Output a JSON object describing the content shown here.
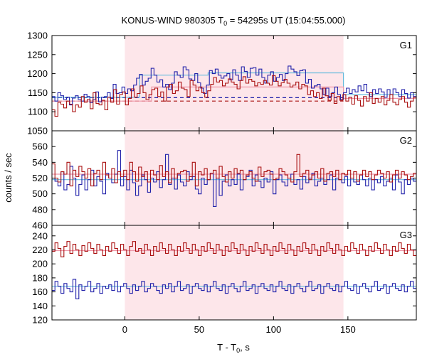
{
  "title": {
    "main": "KONUS-WIND 980305 T",
    "sub": "0",
    "rest": " = 54295s UT (15:04:55.000)"
  },
  "xlabel": {
    "main": "T - T",
    "sub": "0",
    "rest": ", s"
  },
  "ylabel": "counts / sec",
  "chart_data": {
    "type": "line",
    "x_range": [
      -49,
      196
    ],
    "x_ticks": [
      0,
      50,
      100,
      150
    ],
    "shaded_interval": [
      0,
      147
    ],
    "panels": [
      {
        "label": "G1",
        "ylim": [
          1050,
          1300
        ],
        "y_ticks": [
          1050,
          1100,
          1150,
          1200,
          1250,
          1300
        ],
        "series": [
          {
            "color": "#2222aa",
            "values": [
              1140,
              1128,
              1150,
              1142,
              1132,
              1138,
              1118,
              1136,
              1142,
              1132,
              1128,
              1146,
              1140,
              1124,
              1132,
              1152,
              1126,
              1138,
              1140,
              1150,
              1135,
              1172,
              1148,
              1150,
              1165,
              1148,
              1160,
              1155,
              1170,
              1188,
              1198,
              1170,
              1180,
              1188,
              1214,
              1196,
              1178,
              1184,
              1165,
              1172,
              1158,
              1175,
              1205,
              1196,
              1190,
              1218,
              1210,
              1186,
              1182,
              1200,
              1176,
              1162,
              1148,
              1170,
              1208,
              1200,
              1212,
              1196,
              1188,
              1194,
              1200,
              1184,
              1210,
              1196,
              1182,
              1218,
              1206,
              1190,
              1214,
              1216,
              1196,
              1212,
              1190,
              1175,
              1196,
              1205,
              1180,
              1190,
              1198,
              1182,
              1200,
              1220,
              1212,
              1205,
              1195,
              1208,
              1210,
              1175,
              1185,
              1162,
              1168,
              1172,
              1160,
              1145,
              1162,
              1140,
              1150,
              1165,
              1145,
              1132,
              1150,
              1162,
              1148,
              1158,
              1152,
              1168,
              1155,
              1172,
              1150,
              1140,
              1158,
              1148,
              1160,
              1152,
              1138,
              1158,
              1145,
              1160,
              1150,
              1140,
              1158,
              1148,
              1136,
              1150,
              1140
            ]
          },
          {
            "color": "#aa1111",
            "values": [
              1105,
              1088,
              1125,
              1120,
              1110,
              1128,
              1120,
              1100,
              1118,
              1112,
              1140,
              1125,
              1132,
              1108,
              1150,
              1122,
              1118,
              1130,
              1105,
              1138,
              1125,
              1158,
              1120,
              1145,
              1152,
              1118,
              1135,
              1160,
              1138,
              1148,
              1168,
              1150,
              1132,
              1145,
              1158,
              1162,
              1140,
              1152,
              1128,
              1165,
              1172,
              1148,
              1155,
              1178,
              1162,
              1158,
              1140,
              1182,
              1170,
              1155,
              1165,
              1150,
              1138,
              1155,
              1172,
              1190,
              1178,
              1182,
              1168,
              1175,
              1186,
              1178,
              1172,
              1160,
              1182,
              1192,
              1175,
              1185,
              1180,
              1168,
              1176,
              1172,
              1182,
              1175,
              1170,
              1195,
              1180,
              1168,
              1176,
              1185,
              1175,
              1165,
              1170,
              1178,
              1160,
              1172,
              1168,
              1145,
              1155,
              1140,
              1150,
              1135,
              1162,
              1142,
              1130,
              1148,
              1122,
              1140,
              1130,
              1145,
              1128,
              1138,
              1120,
              1142,
              1130,
              1115,
              1140,
              1128,
              1150,
              1122,
              1135,
              1125,
              1140,
              1118,
              1130,
              1145,
              1125,
              1118,
              1132,
              1140,
              1125,
              1112,
              1128,
              1138
            ]
          }
        ],
        "fit_lines": [
          {
            "color": "#2222aa",
            "style": "dashed",
            "x": [
              -49,
              147
            ],
            "values": [
              1137,
              1137
            ]
          },
          {
            "color": "#aa1111",
            "style": "dashed",
            "x": [
              -49,
              147
            ],
            "values": [
              1128,
              1128
            ]
          },
          {
            "color": "#66bbdd",
            "style": "solid",
            "x": [
              -49,
              10,
              10,
              56,
              56,
              147,
              147,
              196
            ],
            "values": [
              1138,
              1138,
              1196,
              1196,
              1202,
              1202,
              1145,
              1145
            ]
          },
          {
            "color": "#ee99aa",
            "style": "solid",
            "x": [
              -49,
              18,
              18,
              147,
              147,
              196
            ],
            "values": [
              1128,
              1128,
              1165,
              1165,
              1135,
              1135
            ]
          }
        ]
      },
      {
        "label": "G2",
        "ylim": [
          460,
          580
        ],
        "y_ticks": [
          460,
          480,
          500,
          520,
          540,
          560
        ],
        "series": [
          {
            "color": "#2222aa",
            "values": [
              520,
              516,
              510,
              528,
              505,
              512,
              535,
              520,
              498,
              512,
              524,
              505,
              518,
              530,
              510,
              522,
              516,
              500,
              526,
              520,
              514,
              525,
              555,
              510,
              522,
              505,
              530,
              514,
              498,
              510,
              524,
              518,
              502,
              520,
              515,
              528,
              508,
              518,
              550,
              512,
              520,
              506,
              524,
              515,
              510,
              528,
              518,
              522,
              506,
              500,
              520,
              512,
              518,
              526,
              484,
              520,
              498,
              516,
              524,
              510,
              518,
              512,
              525,
              505,
              518,
              522,
              530,
              510,
              524,
              516,
              508,
              520,
              515,
              528,
              500,
              518,
              524,
              515,
              510,
              520,
              525,
              512,
              518,
              506,
              522,
              514,
              520,
              526,
              510,
              516,
              520,
              512,
              518,
              524,
              505,
              520,
              518,
              514,
              522,
              510,
              520,
              515,
              512,
              524,
              518,
              510,
              520,
              505,
              518,
              514,
              522,
              510,
              516,
              520,
              505,
              524,
              515,
              500,
              518,
              512,
              520,
              516
            ]
          },
          {
            "color": "#aa1111",
            "values": [
              538,
              520,
              515,
              528,
              525,
              540,
              510,
              530,
              522,
              535,
              528,
              520,
              532,
              510,
              526,
              530,
              518,
              540,
              524,
              520,
              532,
              514,
              528,
              522,
              530,
              518,
              540,
              528,
              516,
              534,
              522,
              528,
              515,
              530,
              524,
              518,
              536,
              522,
              528,
              514,
              532,
              520,
              526,
              528,
              530,
              516,
              522,
              540,
              510,
              528,
              524,
              532,
              518,
              526,
              530,
              520,
              535,
              522,
              515,
              528,
              520,
              532,
              526,
              530,
              518,
              524,
              528,
              520,
              516,
              534,
              522,
              528,
              530,
              525,
              518,
              520,
              532,
              528,
              524,
              520,
              515,
              528,
              550,
              522,
              526,
              530,
              518,
              524,
              528,
              520,
              532,
              516,
              526,
              528,
              522,
              530,
              518,
              526,
              524,
              530,
              520,
              528,
              516,
              524,
              530,
              522,
              528,
              518,
              524,
              530,
              526,
              520,
              528,
              515,
              524,
              530,
              520,
              528,
              524,
              518,
              522,
              526
            ]
          }
        ],
        "fit_lines": [
          {
            "color": "#66bbdd",
            "style": "solid",
            "x": [
              -49,
              196
            ],
            "values": [
              518,
              518
            ]
          },
          {
            "color": "#ee99aa",
            "style": "solid",
            "x": [
              -49,
              196
            ],
            "values": [
              525,
              525
            ]
          }
        ]
      },
      {
        "label": "G3",
        "ylim": [
          120,
          255
        ],
        "y_ticks": [
          120,
          140,
          160,
          180,
          200,
          220,
          240
        ],
        "series": [
          {
            "color": "#2222aa",
            "values": [
              162,
              175,
              168,
              158,
              172,
              165,
              160,
              178,
              150,
              170,
              162,
              168,
              175,
              160,
              165,
              172,
              158,
              168,
              165,
              170,
              162,
              175,
              160,
              168,
              172,
              165,
              158,
              170,
              162,
              168,
              175,
              160,
              165,
              172,
              168,
              162,
              158,
              170,
              165,
              172,
              160,
              168,
              175,
              162,
              165,
              170,
              158,
              168,
              172,
              165,
              162,
              170,
              160,
              168,
              175,
              165,
              162,
              170,
              158,
              168,
              172,
              165,
              160,
              168,
              175,
              162,
              165,
              170,
              158,
              168,
              172,
              165,
              162,
              170,
              160,
              168,
              175,
              165,
              162,
              170,
              158,
              168,
              172,
              165,
              160,
              168,
              175,
              162,
              165,
              170,
              158,
              168,
              172,
              165,
              162,
              170,
              160,
              168,
              175,
              165,
              162,
              170,
              158,
              168,
              172,
              165,
              160,
              168,
              175,
              162,
              165,
              170,
              158,
              168,
              172,
              165,
              162,
              170,
              160,
              168,
              175,
              165
            ]
          },
          {
            "color": "#aa1111",
            "values": [
              218,
              230,
              222,
              210,
              225,
              232,
              215,
              228,
              220,
              212,
              226,
              218,
              230,
              222,
              215,
              228,
              220,
              212,
              225,
              218,
              230,
              222,
              215,
              228,
              220,
              212,
              225,
              232,
              218,
              222,
              215,
              228,
              220,
              212,
              225,
              218,
              230,
              222,
              215,
              228,
              220,
              212,
              225,
              218,
              230,
              222,
              215,
              228,
              220,
              212,
              225,
              218,
              230,
              222,
              215,
              228,
              220,
              212,
              225,
              218,
              230,
              222,
              215,
              228,
              220,
              212,
              225,
              218,
              230,
              222,
              215,
              228,
              220,
              212,
              225,
              218,
              230,
              222,
              215,
              228,
              220,
              212,
              225,
              218,
              230,
              222,
              215,
              228,
              220,
              212,
              225,
              218,
              230,
              222,
              215,
              228,
              220,
              212,
              225,
              218,
              230,
              222,
              215,
              228,
              220,
              212,
              225,
              218,
              230,
              222,
              215,
              228,
              220,
              212,
              225,
              218,
              230,
              222,
              215,
              228,
              220,
              212
            ]
          }
        ],
        "fit_lines": [
          {
            "color": "#66bbdd",
            "style": "solid",
            "x": [
              -49,
              196
            ],
            "values": [
              168,
              168
            ]
          },
          {
            "color": "#ee99aa",
            "style": "solid",
            "x": [
              -49,
              196
            ],
            "values": [
              219,
              219
            ]
          }
        ]
      }
    ]
  }
}
